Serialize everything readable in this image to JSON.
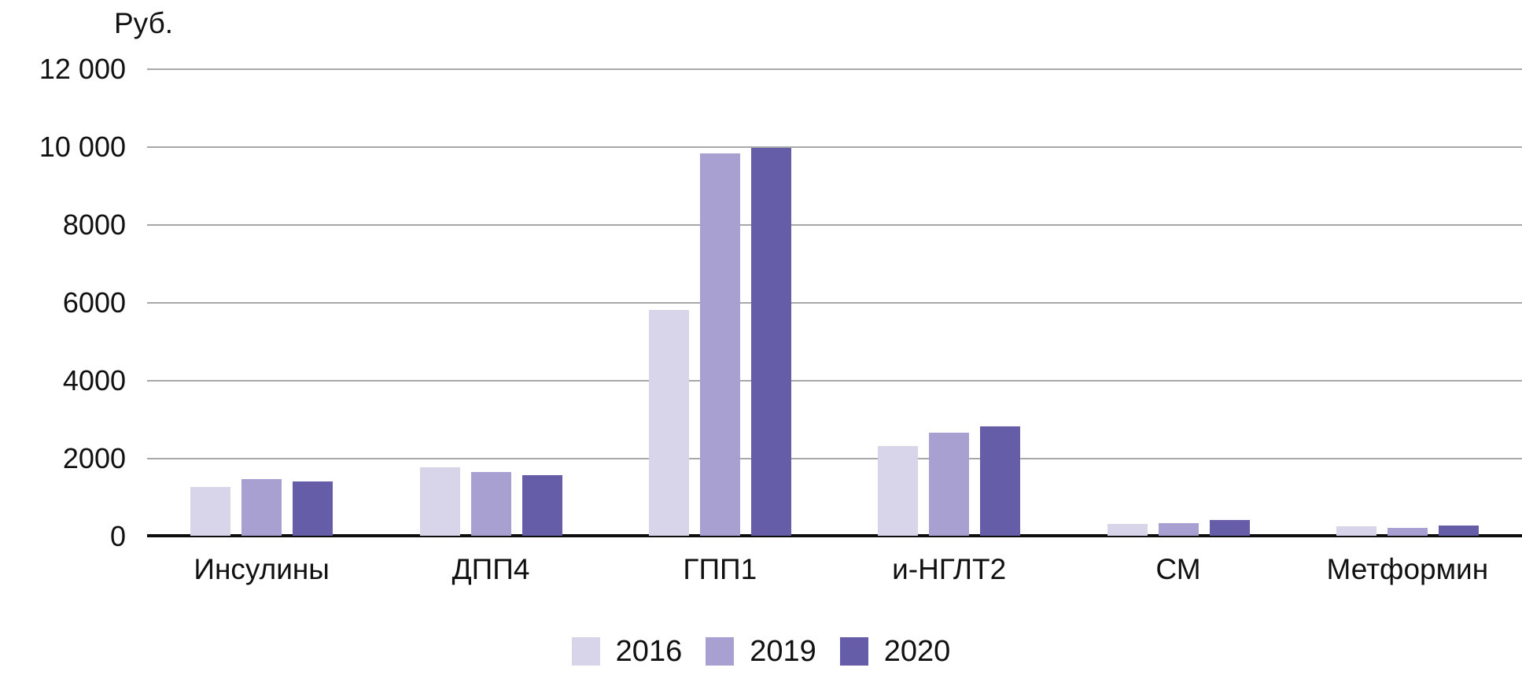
{
  "chart_data": {
    "type": "bar",
    "title": "Руб.",
    "xlabel": "",
    "ylabel": "Руб.",
    "categories": [
      "Инсулины",
      "ДПП4",
      "ГПП1",
      "и-НГЛТ2",
      "СМ",
      "Метформин"
    ],
    "series": [
      {
        "name": "2016",
        "color": "#d8d4ea",
        "values": [
          1250,
          1750,
          5800,
          2300,
          300,
          240
        ]
      },
      {
        "name": "2019",
        "color": "#a7a0d0",
        "values": [
          1450,
          1630,
          9820,
          2650,
          330,
          200
        ]
      },
      {
        "name": "2020",
        "color": "#665da8",
        "values": [
          1400,
          1550,
          9950,
          2800,
          400,
          270
        ]
      }
    ],
    "ylim": [
      0,
      12000
    ],
    "ytick_interval": 2000,
    "ytick_labels": [
      "0",
      "2000",
      "4000",
      "6000",
      "8000",
      "10 000",
      "12 000"
    ],
    "grid": "horizontal",
    "gridline_color": "#a8a8a8",
    "axis_color": "#0d0d0d",
    "text_color": "#111111",
    "legend_position": "bottom"
  }
}
